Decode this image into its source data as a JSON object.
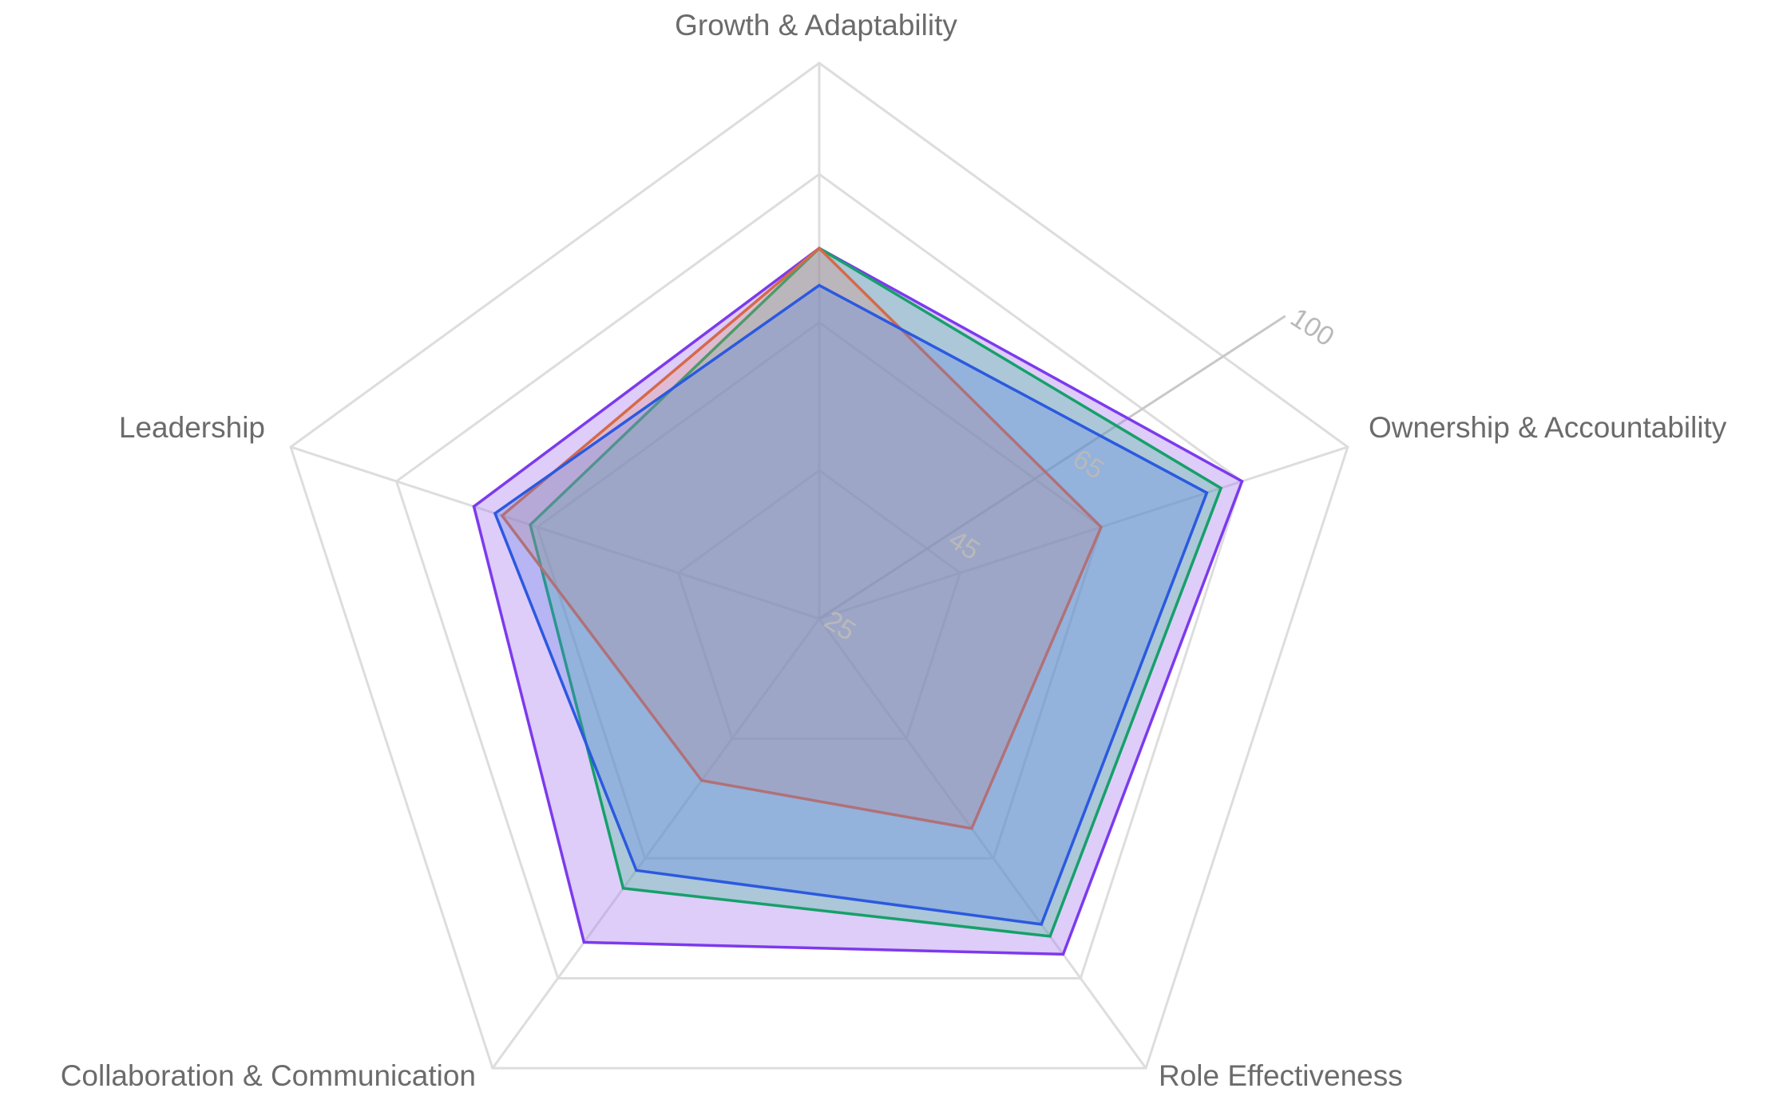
{
  "chart_data": {
    "type": "radar",
    "title": "",
    "axes": [
      "Growth & Adaptability",
      "Ownership & Accountability",
      "Role Effectiveness",
      "Collaboration & Communication",
      "Leadership"
    ],
    "radial_range": [
      25,
      100
    ],
    "radial_ticks": [
      25,
      45,
      65,
      100
    ],
    "grid": true,
    "legend": "none",
    "series": [
      {
        "values": [
          75,
          85,
          81,
          79,
          74
        ],
        "color": "#7c3aed",
        "fill": "rgba(168, 120, 240, 0.38)"
      },
      {
        "values": [
          75,
          82,
          78,
          70,
          66
        ],
        "color": "#16a06a",
        "fill": "rgba(52, 190, 140, 0.30)"
      },
      {
        "values": [
          75,
          65,
          60,
          52,
          70
        ],
        "color": "#d46a4a",
        "fill": "rgba(228, 140, 110, 0.28)"
      },
      {
        "values": [
          70,
          80,
          76,
          67,
          71
        ],
        "color": "#2b59e0",
        "fill": "rgba(92, 130, 230, 0.30)"
      }
    ]
  }
}
